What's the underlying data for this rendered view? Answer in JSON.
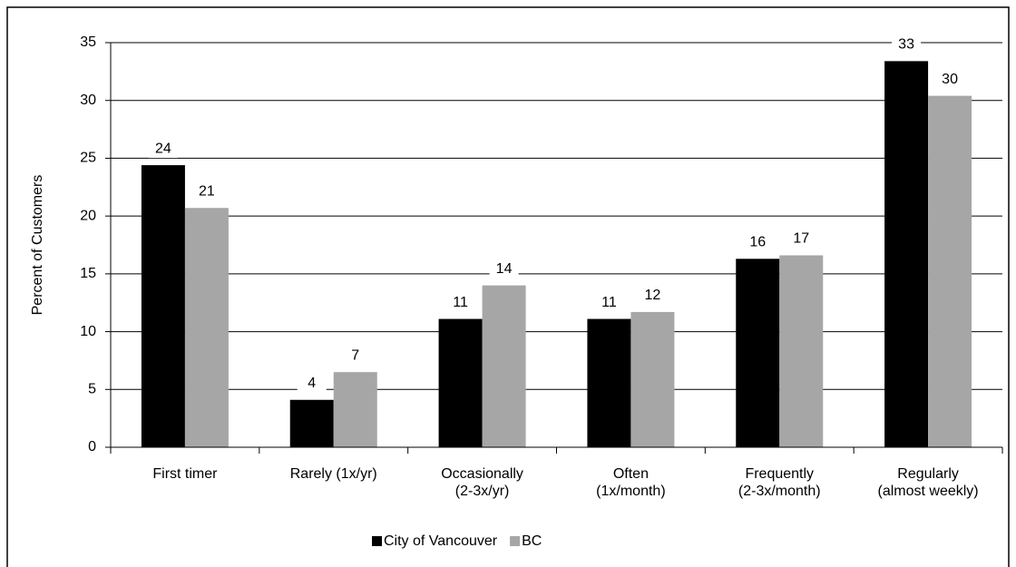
{
  "chart_data": {
    "type": "bar",
    "y_label": "Percent of Customers",
    "categories": [
      "First timer",
      "Rarely  (1x/yr)",
      "Occasionally\n(2-3x/yr)",
      "Often\n(1x/month)",
      "Frequently\n(2-3x/month)",
      "Regularly\n(almost weekly)"
    ],
    "series": [
      {
        "name": "City of Vancouver",
        "color": "#000000",
        "values": [
          24.4,
          4.1,
          11.1,
          11.1,
          16.3,
          33.4
        ],
        "value_labels": [
          "24",
          "4",
          "11",
          "11",
          "16",
          "33"
        ]
      },
      {
        "name": "BC",
        "color": "#a6a6a6",
        "values": [
          20.7,
          6.5,
          14.0,
          11.7,
          16.6,
          30.4
        ],
        "value_labels": [
          "21",
          "7",
          "14",
          "12",
          "17",
          "30"
        ]
      }
    ],
    "ylim": [
      0,
      35
    ],
    "yticks": [
      0,
      5,
      10,
      15,
      20,
      25,
      30,
      35
    ],
    "grid": true,
    "legend": "bottom"
  }
}
